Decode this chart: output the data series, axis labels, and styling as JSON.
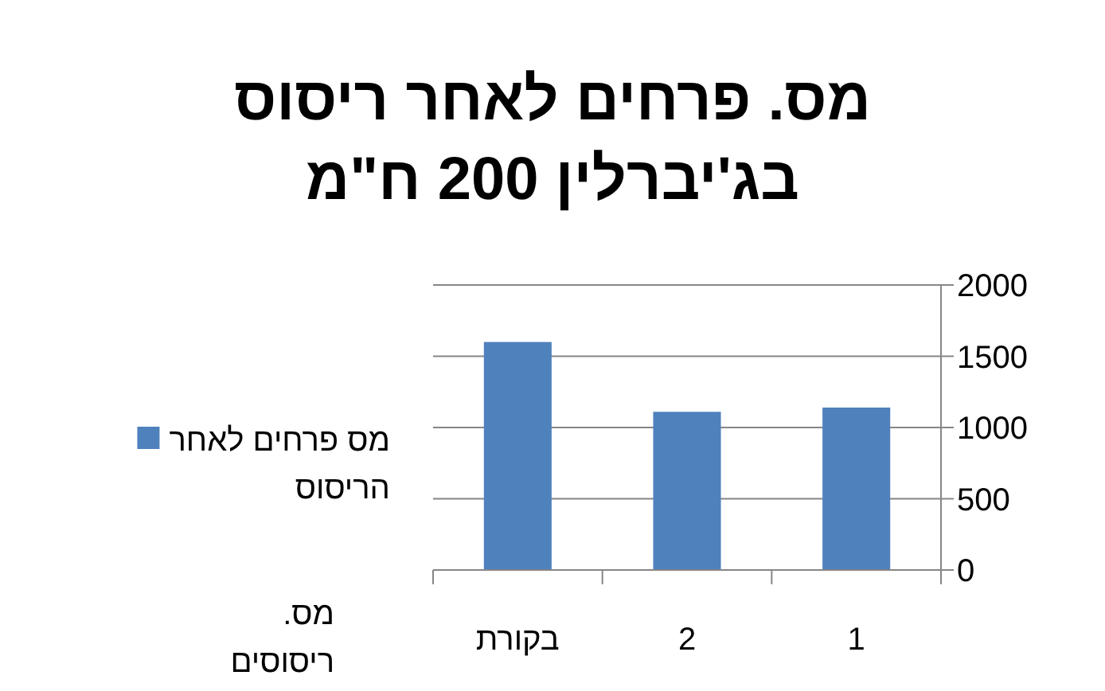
{
  "chart_data": {
    "type": "bar",
    "title": "מס. פרחים לאחר ריסוס בג'יברלין 200 ח\"מ",
    "xlabel": "מס. ריסוסים",
    "categories": [
      "בקורת",
      "2",
      "1"
    ],
    "series": [
      {
        "name": "מס פרחים לאחר הריסוס",
        "color": "#4f81bd",
        "values": [
          1600,
          1110,
          1140
        ]
      }
    ],
    "ylim": [
      0,
      2000
    ],
    "yticks": [
      0,
      500,
      1000,
      1500,
      2000
    ],
    "grid": "y",
    "legend": "left"
  }
}
